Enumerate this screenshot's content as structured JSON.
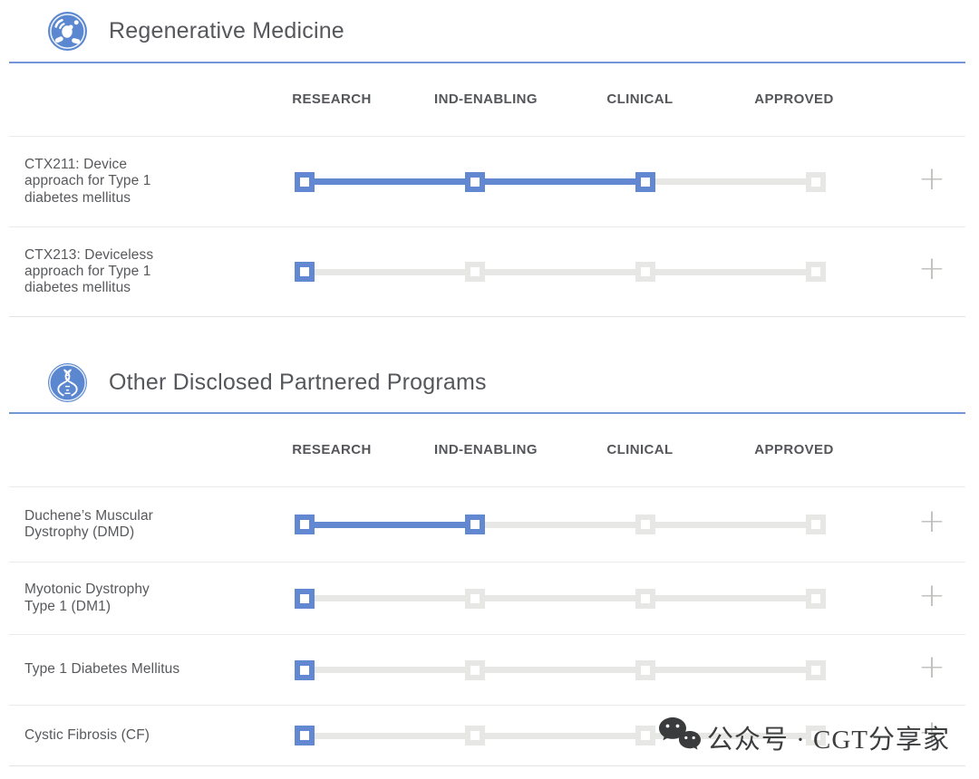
{
  "ui": {
    "expand_glyph": "+"
  },
  "colors": {
    "accent_blue": "#6288d2",
    "rule_blue": "#7495d6",
    "inactive_gray": "#e7e7e5",
    "text_gray": "#58595c"
  },
  "stage_columns": [
    "RESEARCH",
    "IND-ENABLING",
    "CLINICAL",
    "APPROVED"
  ],
  "sections": [
    {
      "title": "Regenerative Medicine",
      "icon": "cell-icon",
      "rows": [
        {
          "name": "CTX211: Device\napproach for Type 1\ndiabetes mellitus",
          "stage": 3
        },
        {
          "name": "CTX213: Deviceless\napproach for Type 1\ndiabetes mellitus",
          "stage": 1
        }
      ]
    },
    {
      "title": "Other Disclosed Partnered Programs",
      "icon": "dna-icon",
      "rows": [
        {
          "name": "Duchene’s Muscular\nDystrophy (DMD)",
          "stage": 2
        },
        {
          "name": "Myotonic Dystrophy\nType 1 (DM1)",
          "stage": 1
        },
        {
          "name": "Type 1 Diabetes Mellitus",
          "stage": 1
        },
        {
          "name": "Cystic Fibrosis (CF)",
          "stage": 1
        }
      ]
    }
  ],
  "watermark": {
    "text": "公众号 · CGT分享家",
    "icon": "wechat-icon"
  },
  "chart_data": {
    "type": "table",
    "title": "Pipeline progress by program",
    "categories": [
      "RESEARCH",
      "IND-ENABLING",
      "CLINICAL",
      "APPROVED"
    ],
    "series": [
      {
        "section": "Regenerative Medicine",
        "name": "CTX211: Device approach for Type 1 diabetes mellitus",
        "stages_reached": 3,
        "furthest_stage": "CLINICAL"
      },
      {
        "section": "Regenerative Medicine",
        "name": "CTX213: Deviceless approach for Type 1 diabetes mellitus",
        "stages_reached": 1,
        "furthest_stage": "RESEARCH"
      },
      {
        "section": "Other Disclosed Partnered Programs",
        "name": "Duchene’s Muscular Dystrophy (DMD)",
        "stages_reached": 2,
        "furthest_stage": "IND-ENABLING"
      },
      {
        "section": "Other Disclosed Partnered Programs",
        "name": "Myotonic Dystrophy Type 1 (DM1)",
        "stages_reached": 1,
        "furthest_stage": "RESEARCH"
      },
      {
        "section": "Other Disclosed Partnered Programs",
        "name": "Type 1 Diabetes Mellitus",
        "stages_reached": 1,
        "furthest_stage": "RESEARCH"
      },
      {
        "section": "Other Disclosed Partnered Programs",
        "name": "Cystic Fibrosis (CF)",
        "stages_reached": 1,
        "furthest_stage": "RESEARCH"
      }
    ],
    "legend_position": "none",
    "grid": false
  }
}
